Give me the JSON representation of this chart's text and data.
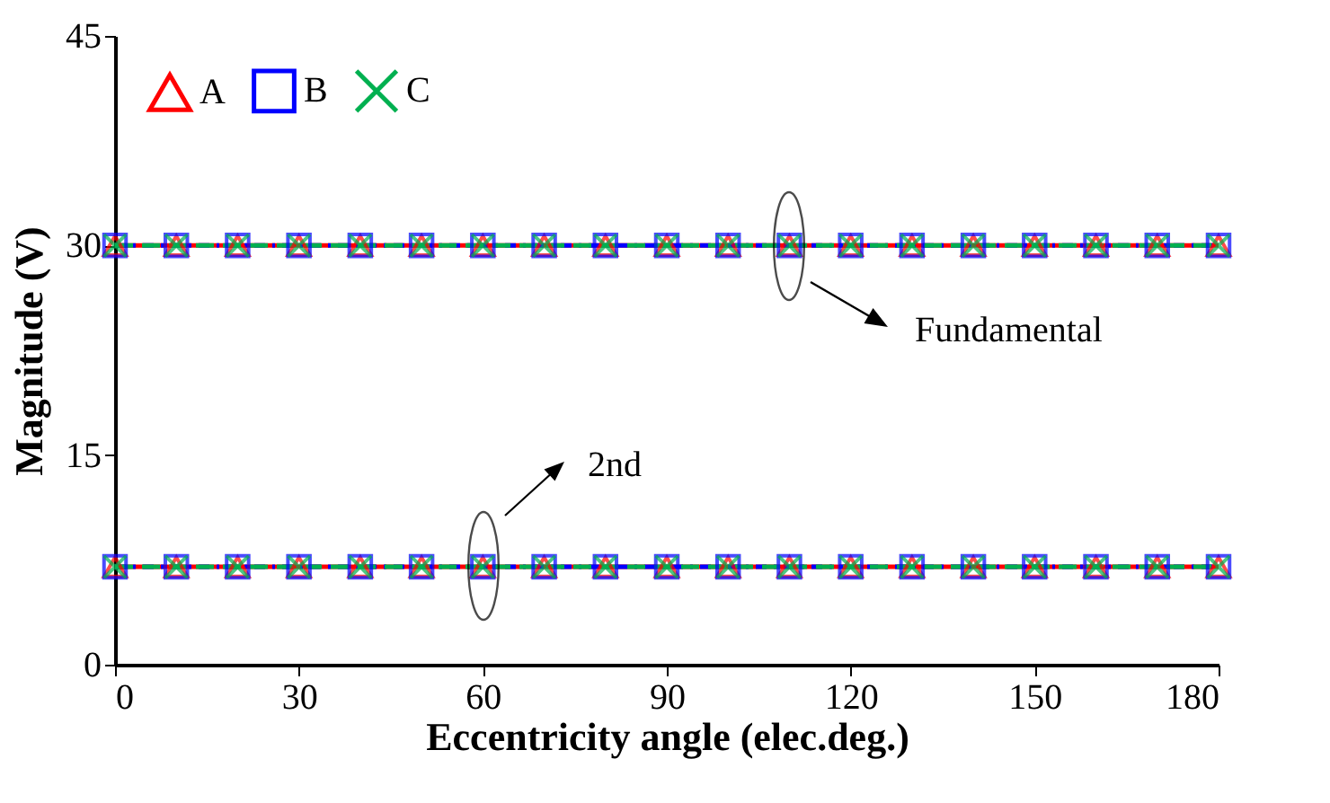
{
  "chart_data": {
    "type": "line",
    "xlabel": "Eccentricity angle (elec.deg.)",
    "ylabel": "Magnitude (V)",
    "x": [
      0,
      10,
      20,
      30,
      40,
      50,
      60,
      70,
      80,
      90,
      100,
      110,
      120,
      130,
      140,
      150,
      160,
      170,
      180
    ],
    "xlim": [
      0,
      180
    ],
    "xticks": [
      0,
      30,
      60,
      90,
      120,
      150,
      180
    ],
    "ylim": [
      0,
      45
    ],
    "yticks": [
      0,
      15,
      30,
      45
    ],
    "grid": false,
    "legend": "top left",
    "series": [
      {
        "name": "A",
        "color": "#ff0000",
        "marker": "triangle",
        "line_style": "solid",
        "values": [
          30,
          30,
          30,
          30,
          30,
          30,
          30,
          30,
          30,
          30,
          30,
          30,
          30,
          30,
          30,
          30,
          30,
          30,
          30
        ]
      },
      {
        "name": "B",
        "color": "#0000ff",
        "marker": "square",
        "line_style": "dotted",
        "values": [
          30,
          30,
          30,
          30,
          30,
          30,
          30,
          30,
          30,
          30,
          30,
          30,
          30,
          30,
          30,
          30,
          30,
          30,
          30
        ]
      },
      {
        "name": "C",
        "color": "#00b050",
        "marker": "cross",
        "line_style": "dashed",
        "values": [
          30,
          30,
          30,
          30,
          30,
          30,
          30,
          30,
          30,
          30,
          30,
          30,
          30,
          30,
          30,
          30,
          30,
          30,
          30
        ]
      },
      {
        "color": "#ff0000",
        "marker": "triangle",
        "line_style": "solid",
        "values": [
          7,
          7,
          7,
          7,
          7,
          7,
          7,
          7,
          7,
          7,
          7,
          7,
          7,
          7,
          7,
          7,
          7,
          7,
          7
        ]
      },
      {
        "color": "#0000ff",
        "marker": "square",
        "line_style": "dotted",
        "values": [
          7,
          7,
          7,
          7,
          7,
          7,
          7,
          7,
          7,
          7,
          7,
          7,
          7,
          7,
          7,
          7,
          7,
          7,
          7
        ]
      },
      {
        "color": "#00b050",
        "marker": "cross",
        "line_style": "dashed",
        "values": [
          7,
          7,
          7,
          7,
          7,
          7,
          7,
          7,
          7,
          7,
          7,
          7,
          7,
          7,
          7,
          7,
          7,
          7,
          7
        ]
      }
    ],
    "annotations": [
      "Fundamental",
      "2nd"
    ]
  }
}
